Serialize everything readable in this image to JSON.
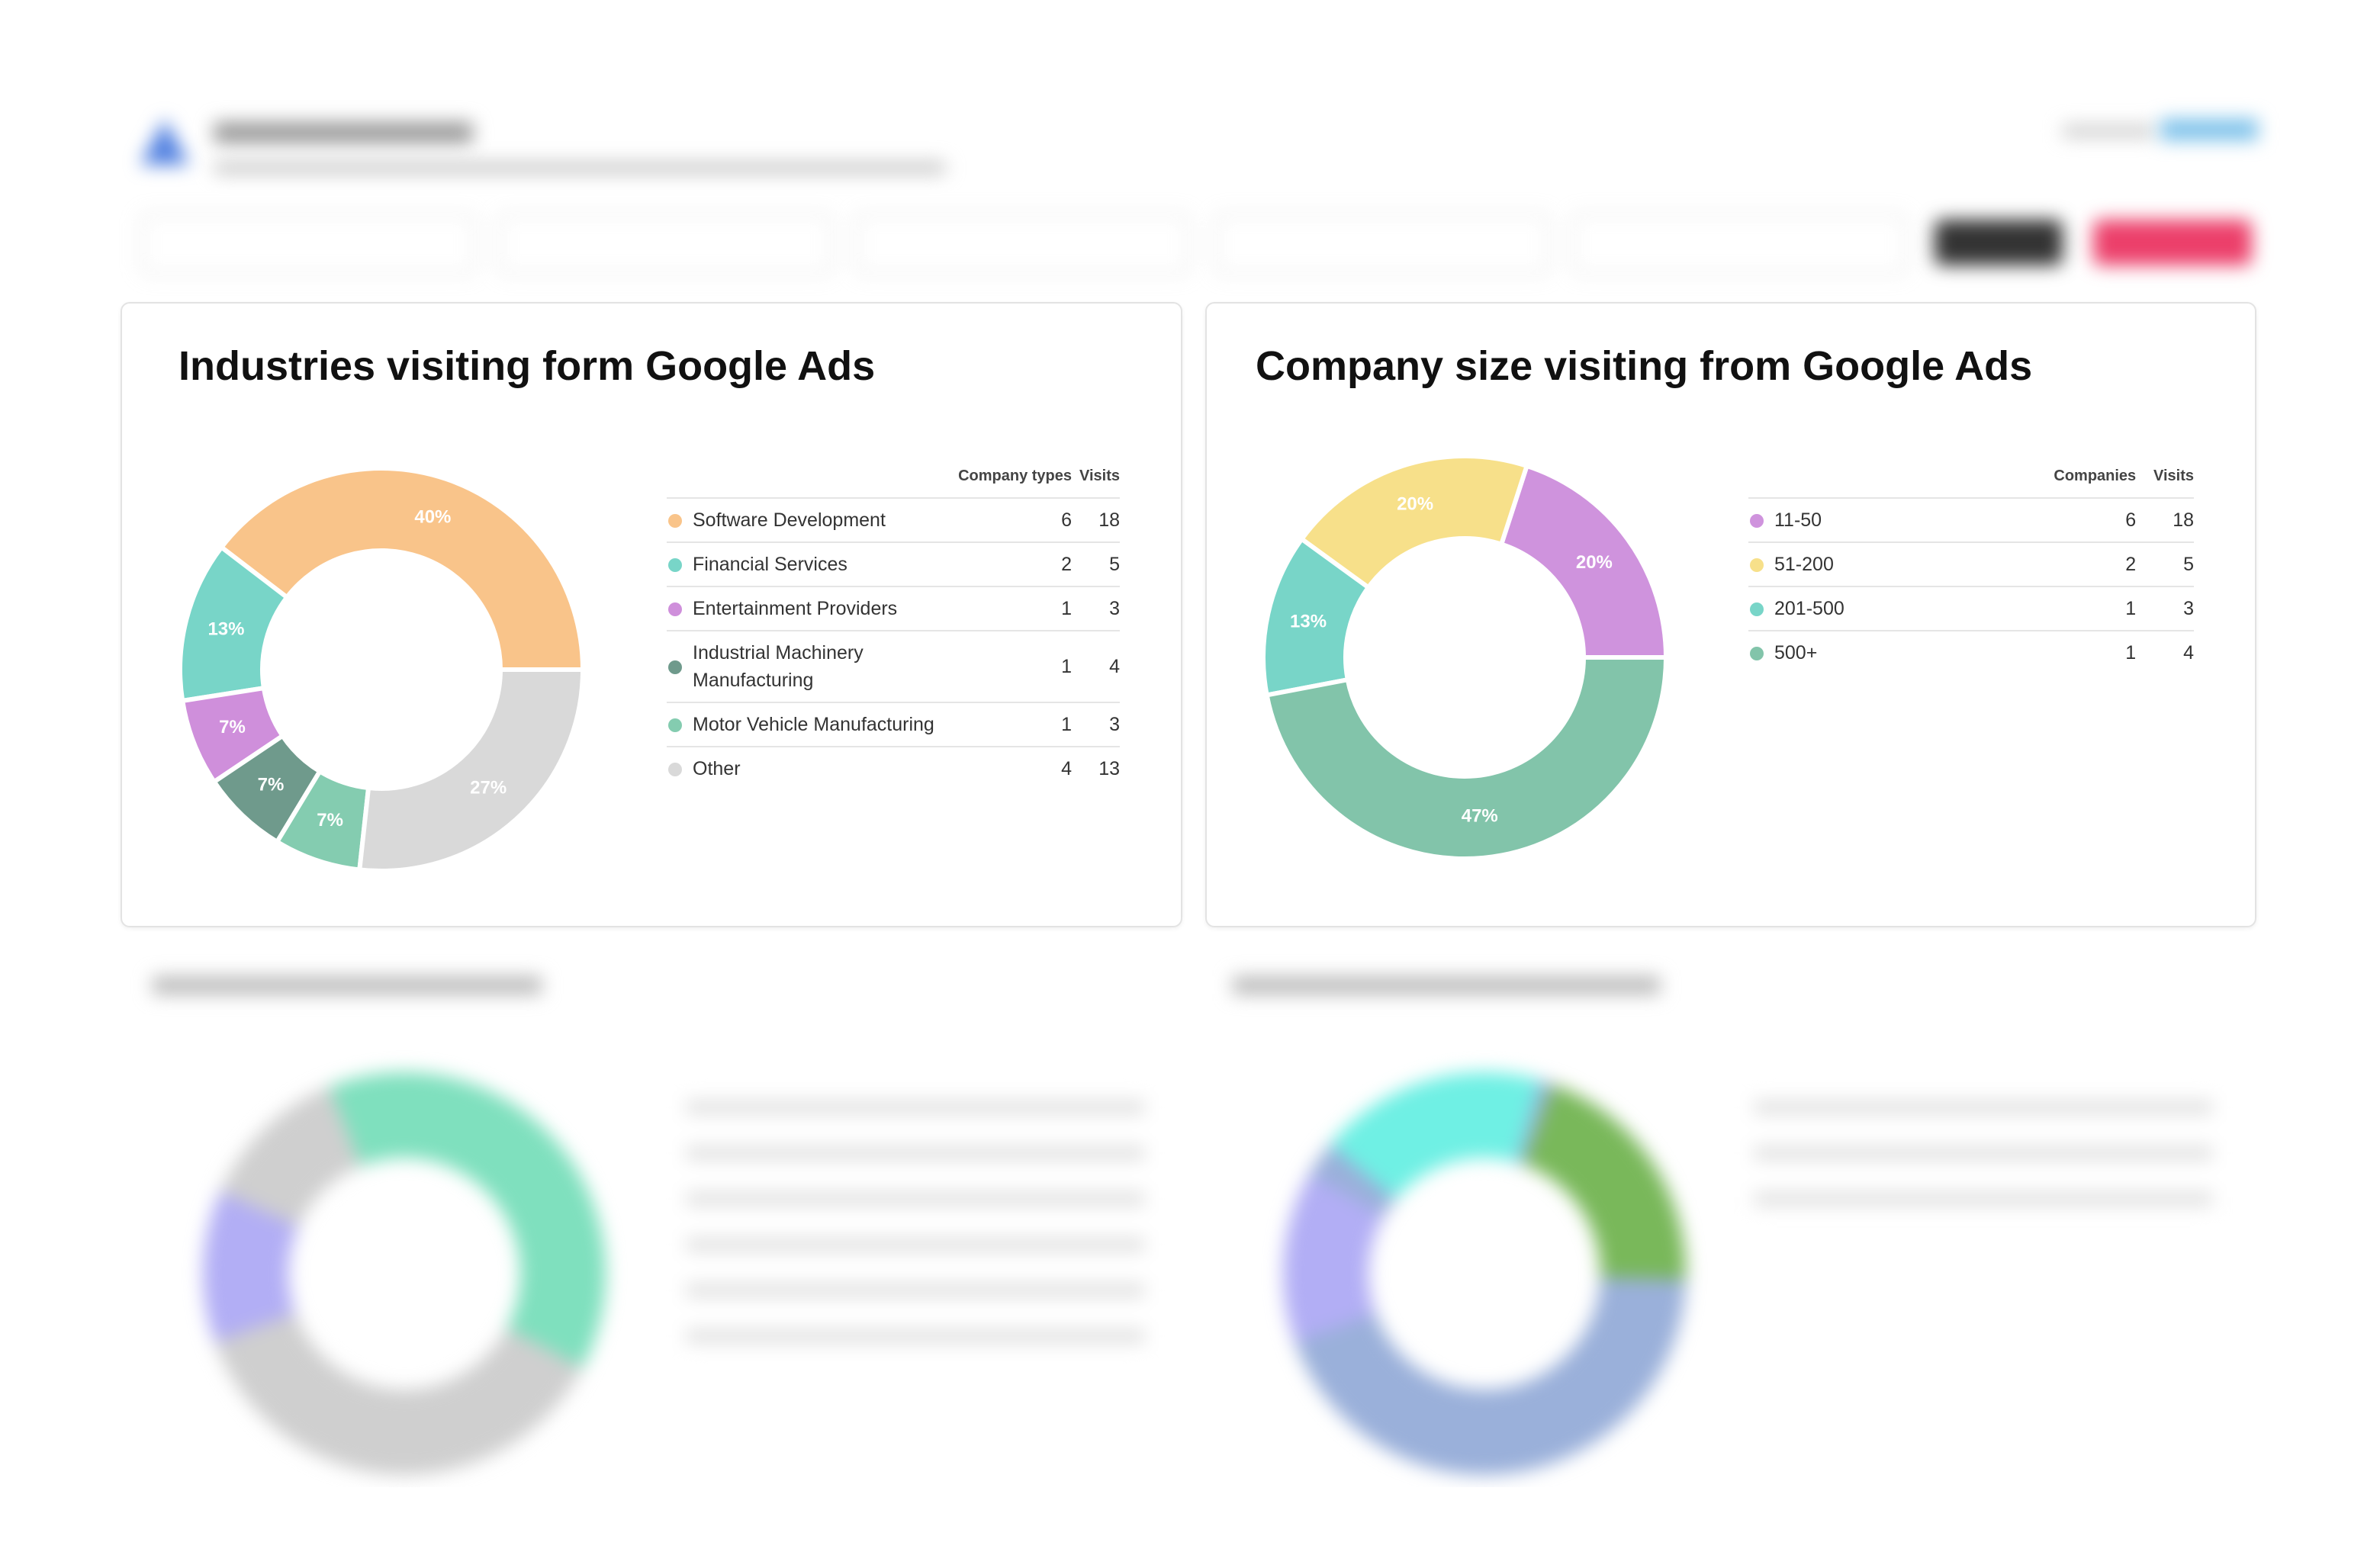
{
  "chart_data": [
    {
      "type": "pie",
      "title": "Industries visiting form Google Ads",
      "categories": [
        "Software Development",
        "Financial Services",
        "Entertainment Providers",
        "Industrial Machinery Manufacturing",
        "Motor Vehicle Manufacturing",
        "Other"
      ],
      "values": [
        40,
        13,
        7,
        7,
        7,
        27
      ],
      "value_labels": [
        "40%",
        "13%",
        "7%",
        "7%",
        "7%",
        "27%"
      ],
      "colors": [
        "#f9c48a",
        "#78d5c8",
        "#cf8fdb",
        "#6f9a8c",
        "#84ccb0",
        "#d9d9d9"
      ],
      "table": {
        "headers": [
          "Company types",
          "Visits"
        ],
        "rows": [
          [
            6,
            18
          ],
          [
            2,
            5
          ],
          [
            1,
            3
          ],
          [
            1,
            4
          ],
          [
            1,
            3
          ],
          [
            4,
            13
          ]
        ]
      }
    },
    {
      "type": "pie",
      "title": "Company size visiting from Google Ads",
      "categories": [
        "11-50",
        "51-200",
        "201-500",
        "500+"
      ],
      "values": [
        20,
        20,
        13,
        47
      ],
      "value_labels": [
        "20%",
        "20%",
        "13%",
        "47%"
      ],
      "colors": [
        "#cf93dd",
        "#f7e08a",
        "#78d5c8",
        "#82c4aa"
      ],
      "table": {
        "headers": [
          "Companies",
          "Visits"
        ],
        "rows": [
          [
            6,
            18
          ],
          [
            2,
            5
          ],
          [
            1,
            3
          ],
          [
            1,
            4
          ]
        ]
      }
    }
  ]
}
